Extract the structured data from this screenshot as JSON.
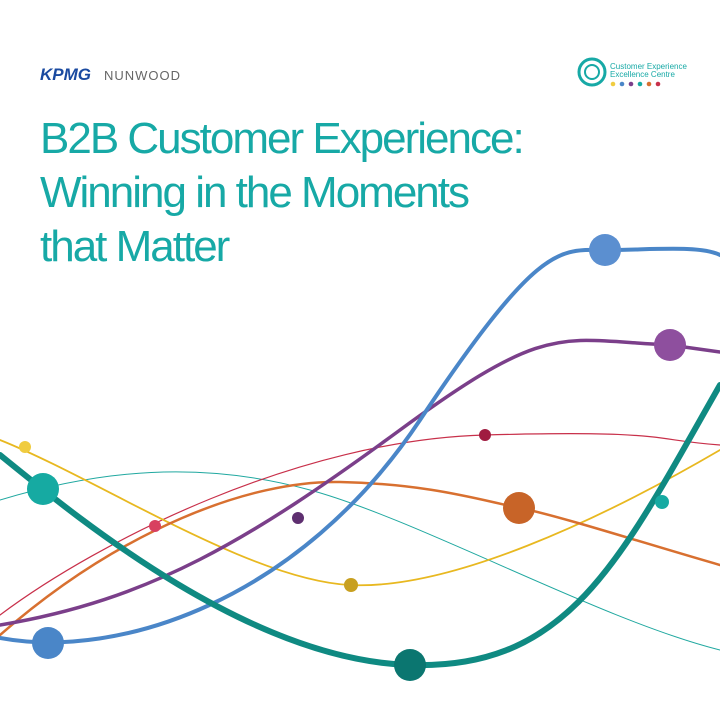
{
  "header": {
    "brand": "KPMG",
    "partner": "NUNWOOD",
    "badge_line1": "Customer Experience",
    "badge_line2": "Excellence Centre"
  },
  "title": {
    "lines": [
      "B2B Customer Experience:",
      "Winning in the Moments",
      "that Matter"
    ]
  }
}
